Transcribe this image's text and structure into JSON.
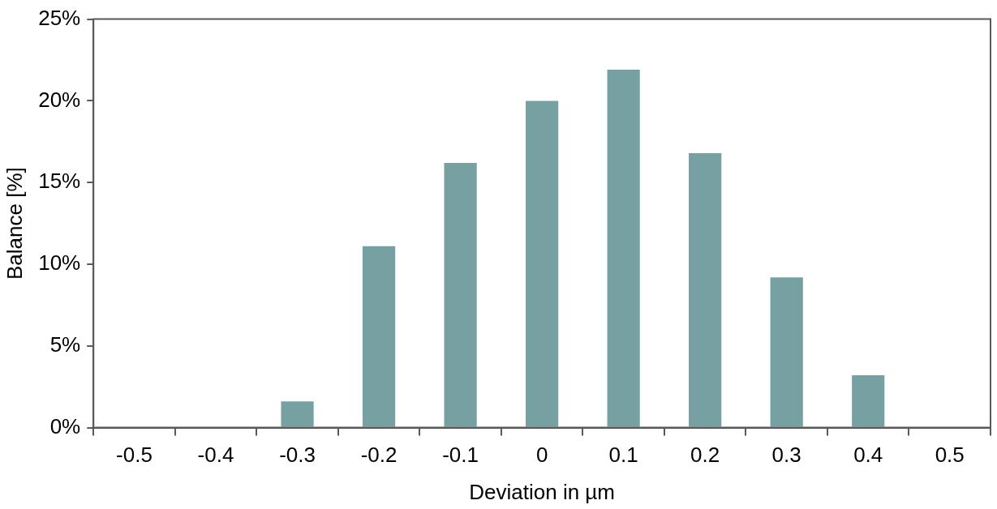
{
  "chart_data": {
    "type": "bar",
    "xlabel": "Deviation in µm",
    "ylabel": "Balance [%]",
    "categories": [
      "-0.5",
      "-0.4",
      "-0.3",
      "-0.2",
      "-0.1",
      "0",
      "0.1",
      "0.2",
      "0.3",
      "0.4",
      "0.5"
    ],
    "values": [
      0,
      0,
      1.6,
      11.1,
      16.2,
      20.0,
      21.9,
      16.8,
      9.2,
      3.2,
      0
    ],
    "color": "#76a0a2",
    "ylim": [
      0,
      25
    ],
    "yticks": [
      {
        "value": 0,
        "label": "0%"
      },
      {
        "value": 5,
        "label": "5%"
      },
      {
        "value": 10,
        "label": "10%"
      },
      {
        "value": 15,
        "label": "15%"
      },
      {
        "value": 20,
        "label": "20%"
      },
      {
        "value": 25,
        "label": "25%"
      }
    ],
    "grid": false,
    "legend": false
  }
}
